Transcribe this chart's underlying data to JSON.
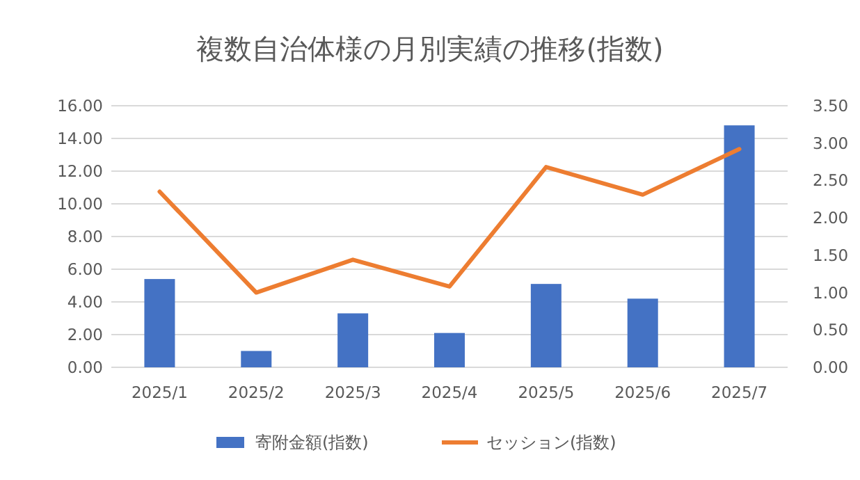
{
  "chart_data": {
    "type": "bar",
    "title": "複数自治体様の月別実績の推移(指数)",
    "categories": [
      "2025/1",
      "2025/2",
      "2025/3",
      "2025/4",
      "2025/5",
      "2025/6",
      "2025/7"
    ],
    "series": [
      {
        "name": "寄附金額(指数)",
        "color": "#4472c4",
        "values": [
          5.4,
          1.0,
          3.3,
          2.1,
          5.1,
          4.2,
          14.8
        ]
      },
      {
        "name": "セッション(指数)",
        "type": "line",
        "axis": "y2",
        "color": "#ed7d31",
        "values": [
          2.35,
          1.0,
          1.44,
          1.08,
          2.68,
          2.31,
          2.92
        ]
      }
    ],
    "ylim": [
      0,
      16
    ],
    "yticks": [
      {
        "value": 0,
        "label": "0.00"
      },
      {
        "value": 2,
        "label": "2.00"
      },
      {
        "value": 4,
        "label": "4.00"
      },
      {
        "value": 6,
        "label": "6.00"
      },
      {
        "value": 8,
        "label": "8.00"
      },
      {
        "value": 10,
        "label": "10.00"
      },
      {
        "value": 12,
        "label": "12.00"
      },
      {
        "value": 14,
        "label": "14.00"
      },
      {
        "value": 16,
        "label": "16.00"
      }
    ],
    "y2lim": [
      0,
      3.5
    ],
    "y2ticks": [
      {
        "value": 0,
        "label": "0.00"
      },
      {
        "value": 0.5,
        "label": "0.50"
      },
      {
        "value": 1,
        "label": "1.00"
      },
      {
        "value": 1.5,
        "label": "1.50"
      },
      {
        "value": 2,
        "label": "2.00"
      },
      {
        "value": 2.5,
        "label": "2.50"
      },
      {
        "value": 3,
        "label": "3.00"
      },
      {
        "value": 3.5,
        "label": "3.50"
      }
    ],
    "grid": "y",
    "legend": "bottom"
  }
}
